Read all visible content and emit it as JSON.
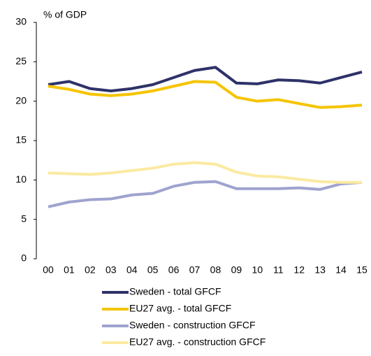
{
  "chart_data": {
    "type": "line",
    "y_label": "% of GDP",
    "categories": [
      "00",
      "01",
      "02",
      "03",
      "04",
      "05",
      "06",
      "07",
      "08",
      "09",
      "10",
      "11",
      "12",
      "13",
      "14",
      "15"
    ],
    "ylim": [
      0,
      30
    ],
    "yticks": [
      0,
      5,
      10,
      15,
      20,
      25,
      30
    ],
    "series": [
      {
        "name": "Sweden - total GFCF",
        "color": "#2e3268",
        "values": [
          22.1,
          22.5,
          21.6,
          21.3,
          21.6,
          22.1,
          23.0,
          23.9,
          24.3,
          22.3,
          22.2,
          22.7,
          22.6,
          22.3,
          23.0,
          23.7
        ]
      },
      {
        "name": "EU27 avg. - total GFCF",
        "color": "#f5c400",
        "values": [
          21.9,
          21.5,
          20.9,
          20.7,
          20.9,
          21.3,
          21.9,
          22.5,
          22.4,
          20.5,
          20.0,
          20.2,
          19.7,
          19.2,
          19.3,
          19.5
        ]
      },
      {
        "name": "Sweden - construction GFCF",
        "color": "#9fa3cf",
        "values": [
          6.6,
          7.2,
          7.5,
          7.6,
          8.1,
          8.3,
          9.2,
          9.7,
          9.8,
          8.9,
          8.9,
          8.9,
          9.0,
          8.8,
          9.5,
          9.7
        ]
      },
      {
        "name": "EU27 avg. - construction GFCF",
        "color": "#fbeaa0",
        "values": [
          10.9,
          10.8,
          10.7,
          10.9,
          11.2,
          11.5,
          12.0,
          12.2,
          12.0,
          11.0,
          10.5,
          10.4,
          10.1,
          9.8,
          9.7,
          9.7
        ]
      }
    ]
  }
}
